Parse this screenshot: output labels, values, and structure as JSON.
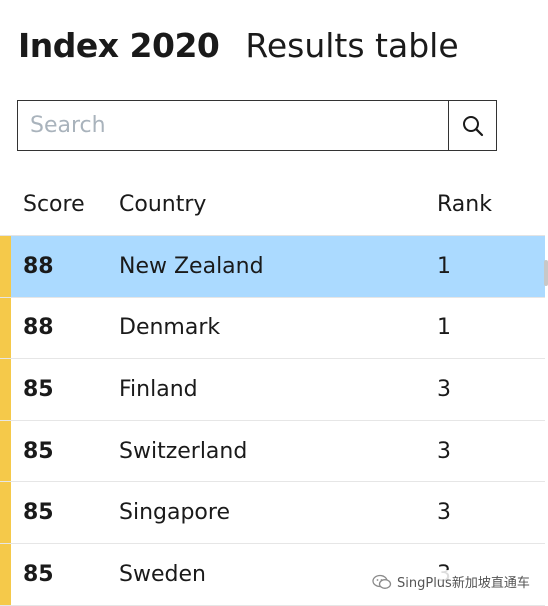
{
  "header": {
    "title": "Index 2020",
    "subtitle": "Results table"
  },
  "search": {
    "placeholder": "Search",
    "value": "",
    "button_icon": "search-icon"
  },
  "table": {
    "columns": [
      "Score",
      "Country",
      "Rank"
    ],
    "rows": [
      {
        "score": "88",
        "country": "New Zealand",
        "rank": "1",
        "selected": true
      },
      {
        "score": "88",
        "country": "Denmark",
        "rank": "1",
        "selected": false
      },
      {
        "score": "85",
        "country": "Finland",
        "rank": "3",
        "selected": false
      },
      {
        "score": "85",
        "country": "Switzerland",
        "rank": "3",
        "selected": false
      },
      {
        "score": "85",
        "country": "Singapore",
        "rank": "3",
        "selected": false
      },
      {
        "score": "85",
        "country": "Sweden",
        "rank": "3",
        "selected": false
      }
    ]
  },
  "colors": {
    "accent": "#f5c94a",
    "selected_row": "#abdaff"
  },
  "watermark": {
    "text": "SingPlus新加坡直通车",
    "icon": "wechat-icon"
  }
}
